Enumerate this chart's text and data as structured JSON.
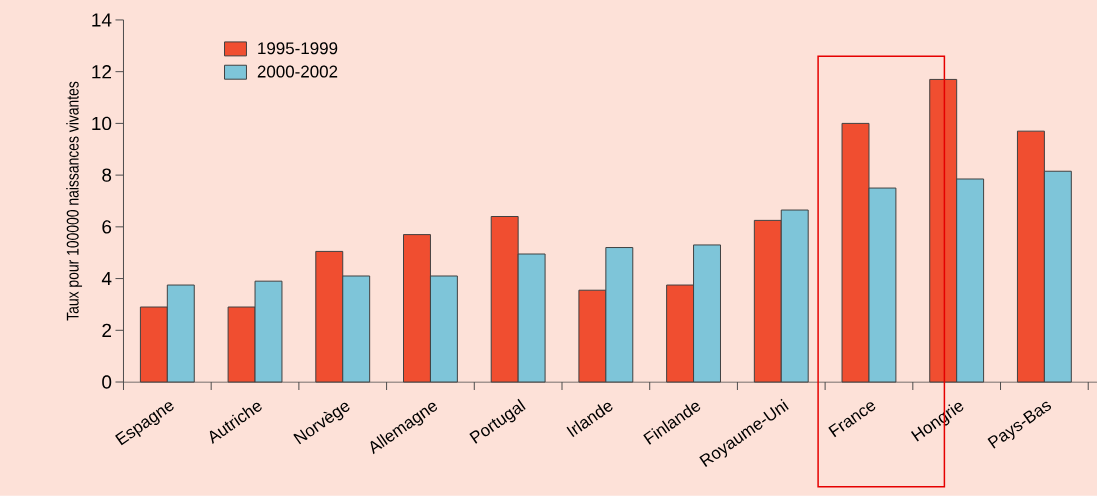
{
  "chart_data": {
    "type": "bar",
    "ylabel": "Taux pour 100000 naissances vivantes",
    "categories": [
      "Espagne",
      "Autriche",
      "Norvège",
      "Allemagne",
      "Portugal",
      "Irlande",
      "Finlande",
      "Royaume-Uni",
      "France",
      "Hongrie",
      "Pays-Bas"
    ],
    "series": [
      {
        "name": "1995-1999",
        "color": "#f04e30",
        "values": [
          2.9,
          2.9,
          5.05,
          5.7,
          6.4,
          3.55,
          3.75,
          6.25,
          10.0,
          11.7,
          9.7
        ]
      },
      {
        "name": "2000-2002",
        "color": "#7ec5d9",
        "values": [
          3.75,
          3.9,
          4.1,
          4.1,
          4.95,
          5.2,
          5.3,
          6.65,
          7.5,
          7.85,
          8.15
        ]
      }
    ],
    "ylim": [
      0,
      14
    ],
    "yticks": [
      0,
      2,
      4,
      6,
      8,
      10,
      12,
      14
    ],
    "legend": "top left",
    "grid": false
  }
}
